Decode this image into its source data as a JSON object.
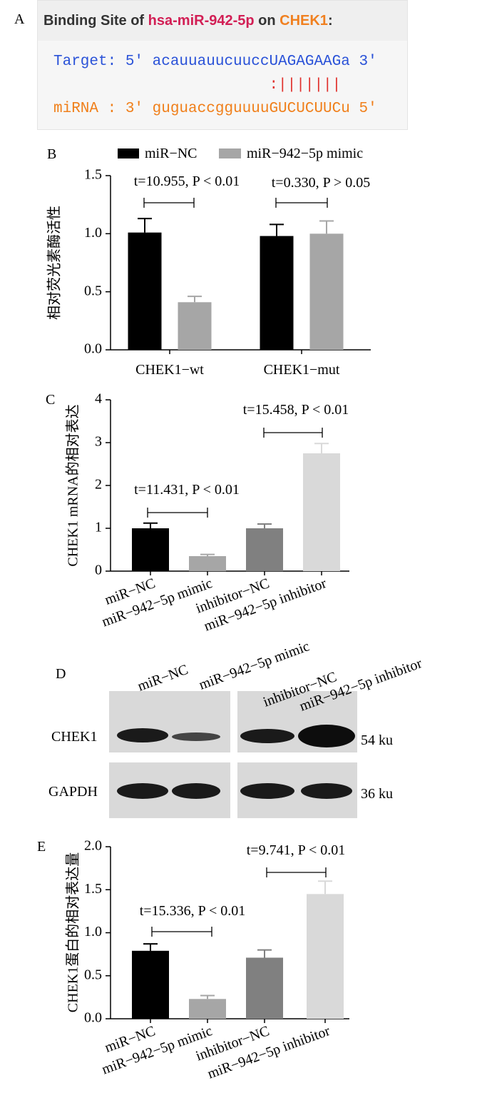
{
  "panel_a": {
    "panel": "A",
    "title": [
      "Binding Site of ",
      "hsa-miR-942-5p",
      " on ",
      "CHEK1",
      ":"
    ],
    "target": "Target: 5' acauuauucuuccUAGAGAAGa 3'",
    "pairing": ":|||||||",
    "mirna": "miRNA : 3' guguaccgguuuuGUCUCUUCu 5'"
  },
  "panel_d": {
    "panel": "D",
    "lanes": [
      "miR−NC",
      "miR−942−5p mimic",
      "inhibitor−NC",
      "miR−942−5p inhibitor"
    ],
    "rows": [
      {
        "protein": "CHEK1",
        "size": "54 ku"
      },
      {
        "protein": "GAPDH",
        "size": "36 ku"
      }
    ]
  },
  "chart_data": [
    {
      "type": "bar",
      "panel": "B",
      "ylabel": "相对荧光素酶活性",
      "categories": [
        "CHEK1−wt",
        "CHEK1−mut"
      ],
      "series": [
        {
          "name": "miR−NC",
          "color": "#000000",
          "values": [
            1.01,
            0.98
          ],
          "errors": [
            0.12,
            0.1
          ]
        },
        {
          "name": "miR−942−5p mimic",
          "color": "#a6a6a6",
          "values": [
            0.41,
            1.0
          ],
          "errors": [
            0.05,
            0.11
          ]
        }
      ],
      "annotations": [
        "t=10.955, P < 0.01",
        "t=0.330, P > 0.05"
      ],
      "ylim": [
        0,
        1.5
      ],
      "yticks": [
        {
          "value": 0,
          "label": "0.0"
        },
        {
          "value": 0.5,
          "label": "0.5"
        },
        {
          "value": 1,
          "label": "1.0"
        },
        {
          "value": 1.5,
          "label": "1.5"
        }
      ],
      "legend": "top"
    },
    {
      "type": "bar",
      "panel": "C",
      "ylabel": "CHEK1 mRNA的相对表达",
      "categories": [
        "miR−NC",
        "miR−942−5p mimic",
        "inhibitor−NC",
        "miR−942−5p inhibitor"
      ],
      "values": [
        1.0,
        0.35,
        1.0,
        2.75
      ],
      "errors": [
        0.12,
        0.04,
        0.1,
        0.23
      ],
      "colors": [
        "#000000",
        "#a6a6a6",
        "#808080",
        "#d9d9d9"
      ],
      "annotations": [
        "t=11.431, P < 0.01",
        "t=15.458, P < 0.01"
      ],
      "ylim": [
        0,
        4
      ],
      "yticks": [
        0,
        1,
        2,
        3,
        4
      ]
    },
    {
      "type": "bar",
      "panel": "E",
      "ylabel": "CHEK1蛋白的相对表达量",
      "categories": [
        "miR−NC",
        "miR−942−5p mimic",
        "inhibitor−NC",
        "miR−942−5p inhibitor"
      ],
      "values": [
        0.79,
        0.23,
        0.71,
        1.45
      ],
      "errors": [
        0.08,
        0.04,
        0.09,
        0.15
      ],
      "colors": [
        "#000000",
        "#a6a6a6",
        "#808080",
        "#d9d9d9"
      ],
      "annotations": [
        "t=15.336, P < 0.01",
        "t=9.741, P < 0.01"
      ],
      "ylim": [
        0,
        2
      ],
      "yticks": [
        {
          "value": 0,
          "label": "0.0"
        },
        {
          "value": 0.5,
          "label": "0.5"
        },
        {
          "value": 1,
          "label": "1.0"
        },
        {
          "value": 1.5,
          "label": "1.5"
        },
        {
          "value": 2,
          "label": "2.0"
        }
      ]
    }
  ]
}
